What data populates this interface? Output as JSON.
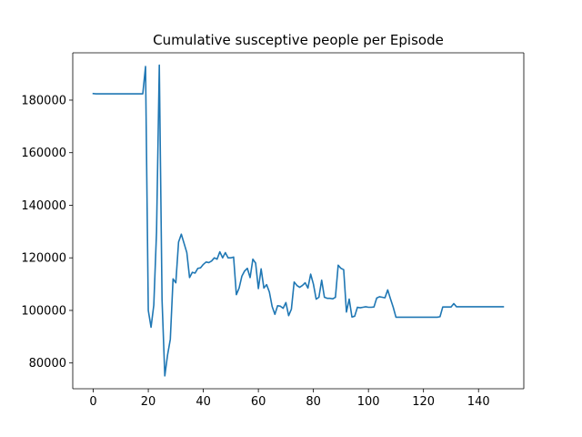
{
  "chart_data": {
    "type": "line",
    "title": "Cumulative susceptive people per Episode",
    "xlabel": "",
    "ylabel": "",
    "xlim": [
      -7.45,
      156.45
    ],
    "ylim": [
      70200,
      198000
    ],
    "xticks": [
      0,
      20,
      40,
      60,
      80,
      100,
      120,
      140
    ],
    "yticks": [
      80000,
      100000,
      120000,
      140000,
      160000,
      180000
    ],
    "xtick_labels": [
      "0",
      "20",
      "40",
      "60",
      "80",
      "100",
      "120",
      "140"
    ],
    "ytick_labels": [
      "80000",
      "100000",
      "120000",
      "140000",
      "160000",
      "180000"
    ],
    "grid": false,
    "line_color": "#1f77b4",
    "series": [
      {
        "x": [
          0,
          1,
          2,
          3,
          4,
          5,
          6,
          7,
          8,
          9,
          10,
          11,
          12,
          13,
          14,
          15,
          16,
          17,
          18,
          19,
          20,
          21,
          22,
          23,
          24,
          25,
          26,
          27,
          28,
          29,
          30,
          31,
          32,
          33,
          34,
          35,
          36,
          37,
          38,
          39,
          40,
          41,
          42,
          43,
          44,
          45,
          46,
          47,
          48,
          49,
          50,
          51,
          52,
          53,
          54,
          55,
          56,
          57,
          58,
          59,
          60,
          61,
          62,
          63,
          64,
          65,
          66,
          67,
          68,
          69,
          70,
          71,
          72,
          73,
          74,
          75,
          76,
          77,
          78,
          79,
          80,
          81,
          82,
          83,
          84,
          85,
          86,
          87,
          88,
          89,
          90,
          91,
          92,
          93,
          94,
          95,
          96,
          97,
          98,
          99,
          100,
          101,
          102,
          103,
          104,
          105,
          106,
          107,
          108,
          109,
          110,
          111,
          112,
          113,
          114,
          115,
          116,
          117,
          118,
          119,
          120,
          121,
          122,
          123,
          124,
          125,
          126,
          127,
          128,
          129,
          130,
          131,
          132,
          133,
          134,
          135,
          136,
          137,
          138,
          139,
          140,
          141,
          142,
          143,
          144,
          145,
          146,
          147,
          148,
          149
        ],
        "y": [
          182500,
          182400,
          182400,
          182400,
          182400,
          182400,
          182400,
          182400,
          182400,
          182400,
          182400,
          182400,
          182400,
          182400,
          182400,
          182400,
          182400,
          182400,
          182400,
          192800,
          100000,
          93600,
          102000,
          130000,
          193300,
          104000,
          75100,
          83000,
          89000,
          112000,
          110500,
          126000,
          129000,
          125500,
          122000,
          112500,
          114500,
          114200,
          116000,
          116200,
          117500,
          118400,
          118200,
          118800,
          120000,
          119500,
          122300,
          120000,
          122000,
          120000,
          120000,
          120300,
          106000,
          108500,
          113000,
          115000,
          116000,
          112500,
          119500,
          118000,
          108300,
          115800,
          108500,
          109800,
          107000,
          101500,
          98500,
          101800,
          101600,
          100800,
          103000,
          98000,
          100500,
          110800,
          109500,
          108800,
          109500,
          110500,
          108500,
          113800,
          110000,
          104300,
          105000,
          111500,
          105000,
          104600,
          104600,
          104400,
          105000,
          117200,
          116000,
          115500,
          99400,
          104300,
          97500,
          97800,
          101200,
          101000,
          101200,
          101400,
          101200,
          101200,
          101300,
          104700,
          105200,
          105000,
          104800,
          107800,
          104400,
          101200,
          97400,
          97400,
          97400,
          97400,
          97400,
          97400,
          97400,
          97400,
          97400,
          97400,
          97400,
          97400,
          97400,
          97400,
          97400,
          97400,
          97600,
          101300,
          101300,
          101300,
          101300,
          102600,
          101400,
          101400,
          101400,
          101400,
          101400,
          101400,
          101400,
          101400,
          101400,
          101400,
          101400,
          101400,
          101400,
          101400,
          101400,
          101400,
          101400,
          101400
        ]
      }
    ]
  }
}
